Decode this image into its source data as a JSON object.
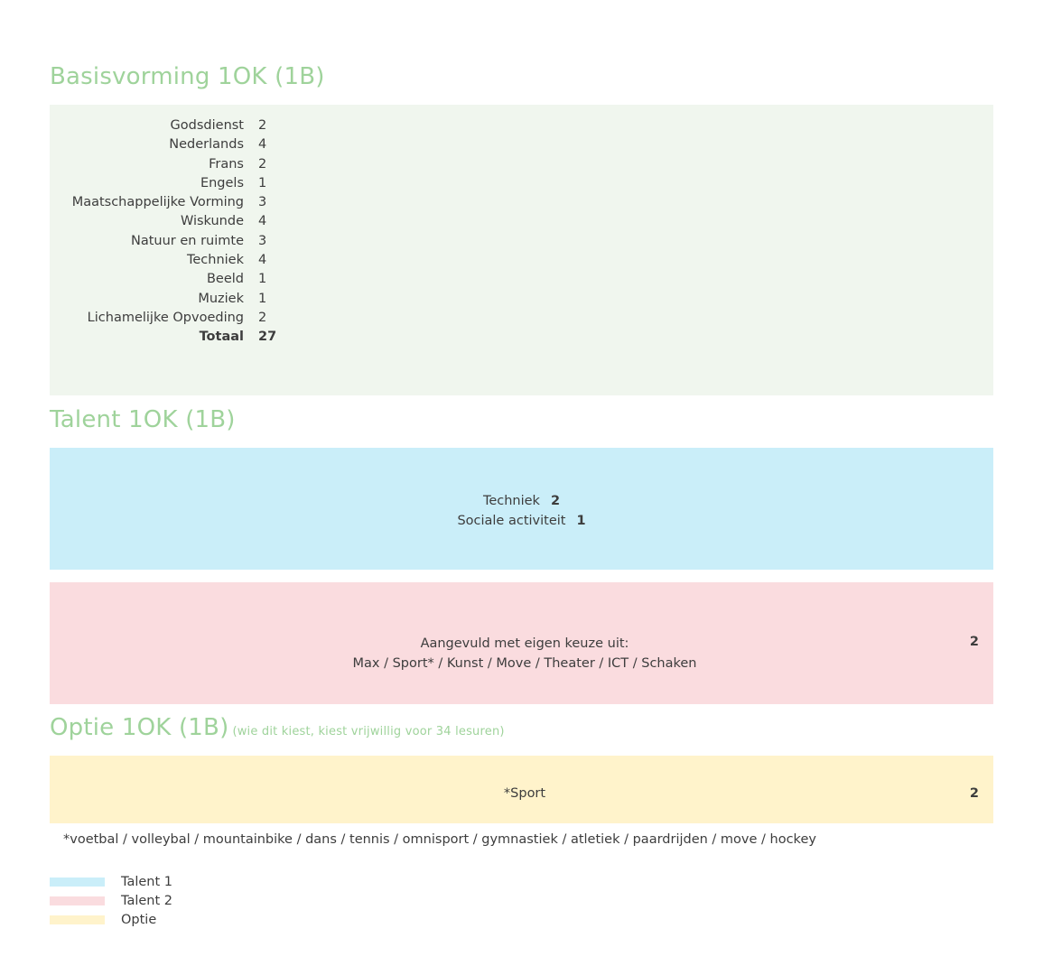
{
  "basis": {
    "title": "Basisvorming 1OK (1B)",
    "courses": [
      {
        "name": "Godsdienst",
        "hours": "2"
      },
      {
        "name": "Nederlands",
        "hours": "4"
      },
      {
        "name": "Frans",
        "hours": "2"
      },
      {
        "name": "Engels",
        "hours": "1"
      },
      {
        "name": "Maatschappelijke Vorming",
        "hours": "3"
      },
      {
        "name": "Wiskunde",
        "hours": "4"
      },
      {
        "name": "Natuur en ruimte",
        "hours": "3"
      },
      {
        "name": "Techniek",
        "hours": "4"
      },
      {
        "name": "Beeld",
        "hours": "1"
      },
      {
        "name": "Muziek",
        "hours": "1"
      },
      {
        "name": "Lichamelijke Opvoeding",
        "hours": "2"
      }
    ],
    "total": {
      "label": "Totaal",
      "hours": "27"
    }
  },
  "talent": {
    "title": "Talent 1OK (1B)",
    "talent1": [
      {
        "name": "Techniek",
        "hours": "2"
      },
      {
        "name": "Sociale activiteit",
        "hours": "1"
      }
    ],
    "talent2": {
      "intro": "Aangevuld met eigen keuze uit:",
      "choices": "Max  /  Sport*  /  Kunst  /  Move  /  Theater  /  ICT  /  Schaken",
      "hours": "2"
    }
  },
  "optie": {
    "title": "Optie 1OK (1B)",
    "subtitle": "(wie dit kiest, kiest vrijwillig voor 34 lesuren)",
    "label": "*Sport",
    "hours": "2"
  },
  "footnote": "*voetbal  /  volleybal  /  mountainbike  /  dans  /  tennis  /  omnisport  /  gymnastiek  /  atletiek  /  paardrijden  /  move  /  hockey",
  "legend": [
    {
      "label": "Talent 1",
      "color": "#caeef9"
    },
    {
      "label": "Talent 2",
      "color": "#fadcdf"
    },
    {
      "label": "Optie",
      "color": "#fff3cb"
    }
  ],
  "colors": {
    "title": "#9fd39b",
    "basis_bg": "#f0f6ee"
  }
}
